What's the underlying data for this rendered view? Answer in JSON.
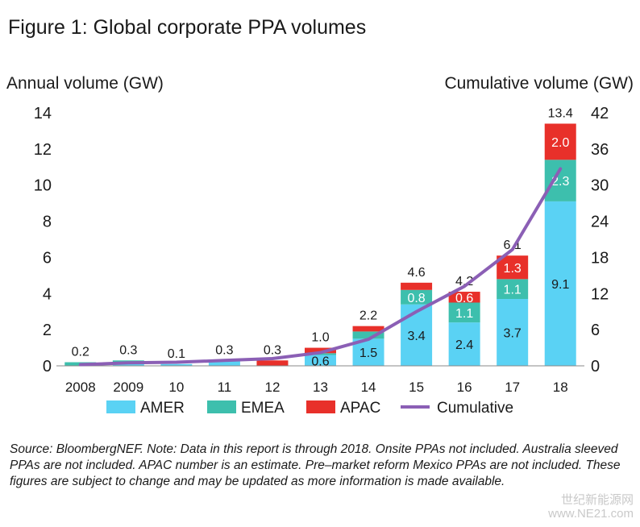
{
  "figure_title": "Figure 1: Global corporate PPA volumes",
  "footnote": "Source: BloombergNEF. Note: Data in this report is through 2018. Onsite PPAs not included. Australia sleeved PPAs are not included. APAC number is an estimate. Pre–market reform Mexico PPAs are not included. These figures are subject to change and may be updated as more information is made available.",
  "watermark": {
    "line1": "世纪新能源网",
    "line2": "www.NE21.com"
  },
  "chart_data": {
    "type": "bar",
    "stacked": true,
    "categories": [
      "2008",
      "2009",
      "10",
      "11",
      "12",
      "13",
      "14",
      "15",
      "16",
      "17",
      "18"
    ],
    "series": [
      {
        "name": "AMER",
        "color": "#5ad2f4",
        "values": [
          0.0,
          0.2,
          0.1,
          0.3,
          0.0,
          0.6,
          1.5,
          3.4,
          2.4,
          3.7,
          9.1
        ]
      },
      {
        "name": "EMEA",
        "color": "#3dbfad",
        "values": [
          0.2,
          0.1,
          0.0,
          0.0,
          0.0,
          0.1,
          0.4,
          0.8,
          1.1,
          1.1,
          2.3
        ]
      },
      {
        "name": "APAC",
        "color": "#e8302a",
        "values": [
          0.0,
          0.0,
          0.0,
          0.0,
          0.3,
          0.3,
          0.3,
          0.4,
          0.6,
          1.3,
          2.0
        ]
      }
    ],
    "segment_labels": [
      {
        "category": "13",
        "series": "AMER",
        "text": "0.6"
      },
      {
        "category": "14",
        "series": "AMER",
        "text": "1.5"
      },
      {
        "category": "15",
        "series": "AMER",
        "text": "3.4"
      },
      {
        "category": "15",
        "series": "EMEA",
        "text": "0.8"
      },
      {
        "category": "16",
        "series": "AMER",
        "text": "2.4"
      },
      {
        "category": "16",
        "series": "EMEA",
        "text": "1.1"
      },
      {
        "category": "16",
        "series": "APAC",
        "text": "0.6"
      },
      {
        "category": "17",
        "series": "AMER",
        "text": "3.7"
      },
      {
        "category": "17",
        "series": "EMEA",
        "text": "1.1"
      },
      {
        "category": "17",
        "series": "APAC",
        "text": "1.3"
      },
      {
        "category": "18",
        "series": "AMER",
        "text": "9.1"
      },
      {
        "category": "18",
        "series": "EMEA",
        "text": "2.3"
      },
      {
        "category": "18",
        "series": "APAC",
        "text": "2.0"
      }
    ],
    "totals": [
      "0.2",
      "0.3",
      "0.1",
      "0.3",
      "0.3",
      "1.0",
      "2.2",
      "4.6",
      "4.2",
      "6.1",
      "13.4"
    ],
    "cumulative": {
      "name": "Cumulative",
      "color": "#8b5fb5",
      "values": [
        0.2,
        0.5,
        0.6,
        0.9,
        1.2,
        2.2,
        4.4,
        9.0,
        13.2,
        19.3,
        32.7
      ]
    },
    "ylabel_left": "Annual volume (GW)",
    "ylabel_right": "Cumulative volume (GW)",
    "ylim_left": [
      0,
      14
    ],
    "ylim_right": [
      0,
      42
    ],
    "yticks_left": [
      0,
      2,
      4,
      6,
      8,
      10,
      12,
      14
    ],
    "yticks_right": [
      0,
      6,
      12,
      18,
      24,
      30,
      36,
      42
    ],
    "grid": false,
    "legend_position": "bottom",
    "legend": [
      "AMER",
      "EMEA",
      "APAC",
      "Cumulative"
    ]
  }
}
